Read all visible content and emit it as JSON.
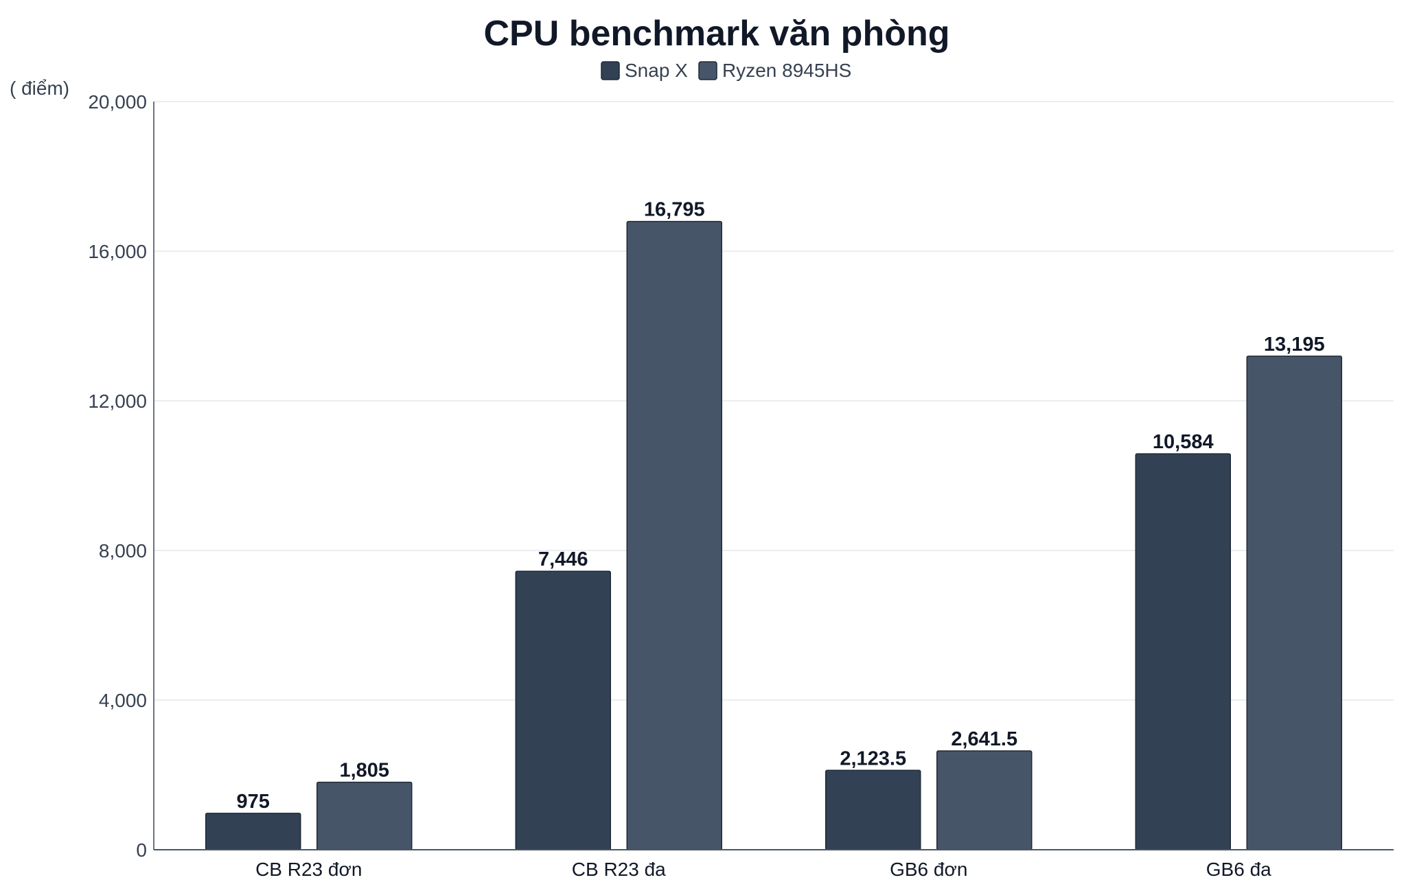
{
  "chart_data": {
    "type": "bar",
    "title": "CPU benchmark văn phòng",
    "ylabel": "( điểm)",
    "xlabel": "",
    "ylim": [
      0,
      20000
    ],
    "yticks": [
      0,
      4000,
      8000,
      12000,
      16000,
      20000
    ],
    "ytick_labels": [
      "0",
      "4,000",
      "8,000",
      "12,000",
      "16,000",
      "20,000"
    ],
    "categories": [
      "CB R23 đơn",
      "CB R23 đa",
      "GB6 đơn",
      "GB6 đa"
    ],
    "series": [
      {
        "name": "Snap X",
        "color": "#334155",
        "values": [
          975,
          7446,
          2123.5,
          10584
        ],
        "labels": [
          "975",
          "7,446",
          "2,123.5",
          "10,584"
        ]
      },
      {
        "name": "Ryzen 8945HS",
        "color": "#475569",
        "values": [
          1805,
          16795,
          2641.5,
          13195
        ],
        "labels": [
          "1,805",
          "16,795",
          "2,641.5",
          "13,195"
        ]
      }
    ],
    "grid": true,
    "legend_position": "top-center"
  }
}
